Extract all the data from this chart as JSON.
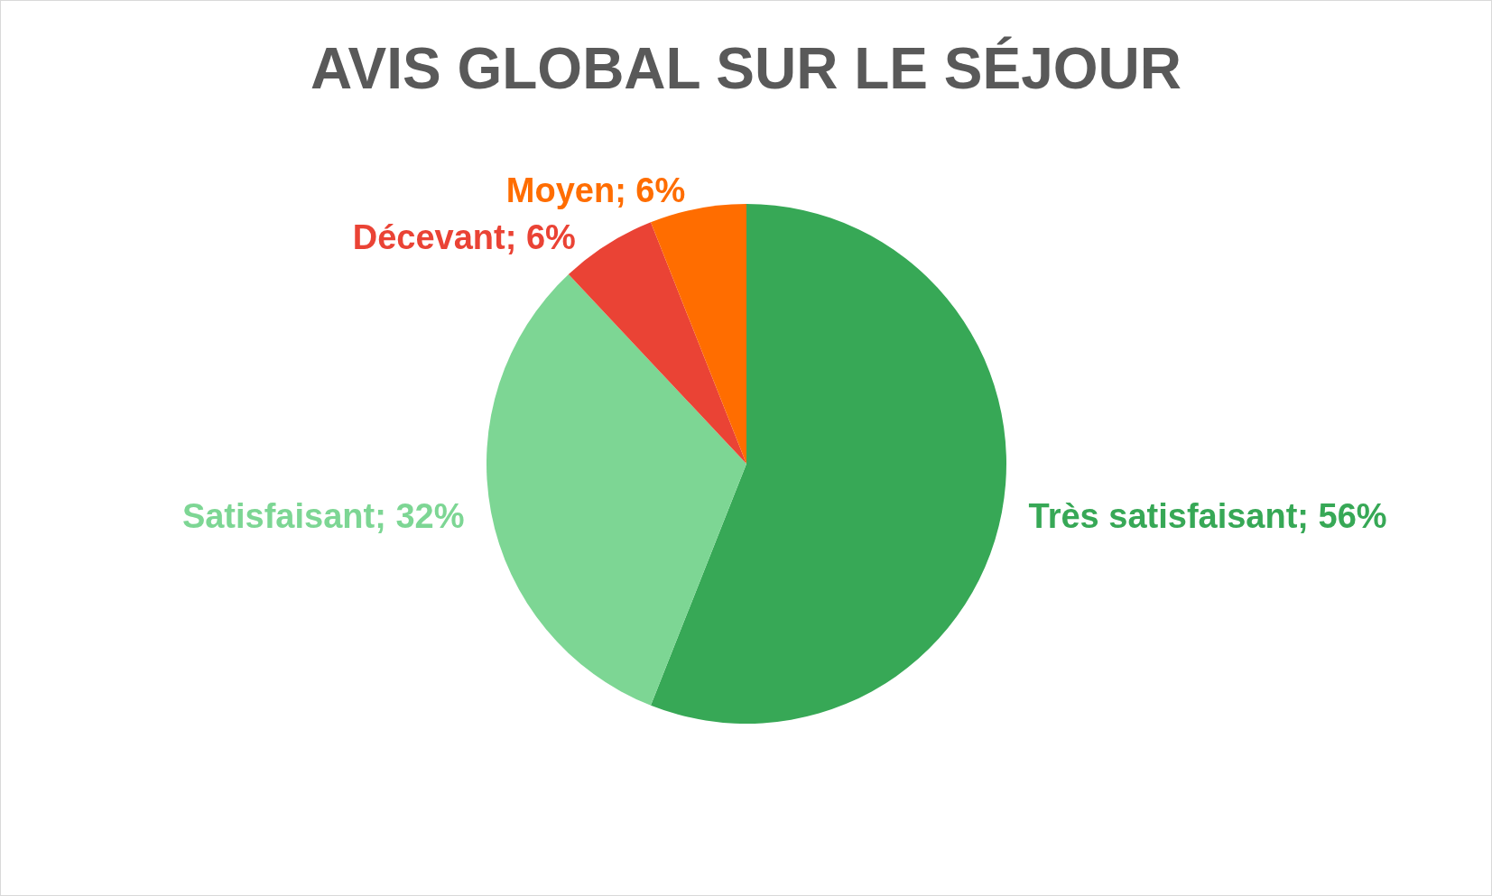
{
  "chart_data": {
    "type": "pie",
    "title": "AVIS GLOBAL SUR LE SÉJOUR",
    "categories": [
      "Très satisfaisant",
      "Satisfaisant",
      "Décevant",
      "Moyen"
    ],
    "values": [
      56,
      32,
      6,
      6
    ],
    "value_labels": [
      "56%",
      "32%",
      "6%",
      "6%"
    ],
    "colors": [
      "#37a856",
      "#7dd694",
      "#ea4335",
      "#ff6d00"
    ],
    "legend": false
  }
}
